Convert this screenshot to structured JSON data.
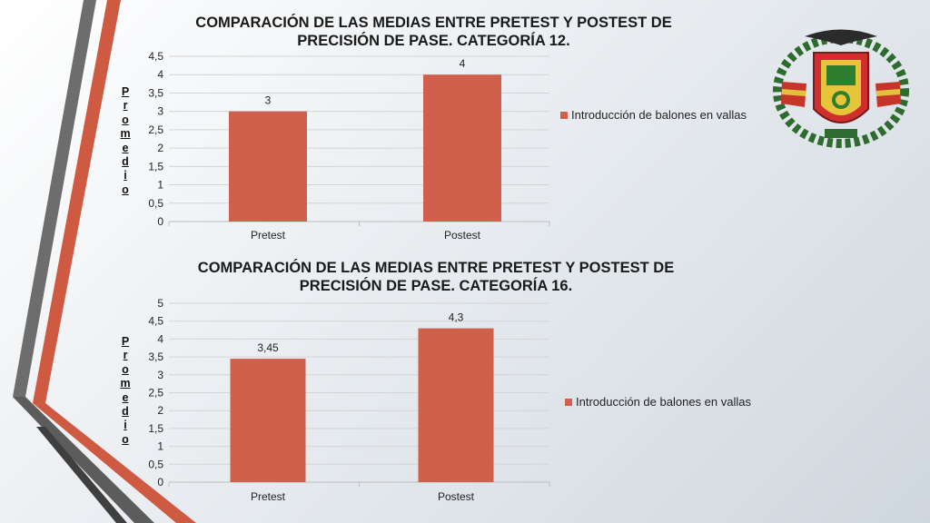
{
  "colors": {
    "bar": "#d0604c",
    "stripe_red": "#cf5a42",
    "stripe_gray": "#6a6a6a"
  },
  "logo": {
    "icon": "university-crest-icon"
  },
  "chart_data": [
    {
      "type": "bar",
      "title": "COMPARACIÓN DE LAS MEDIAS ENTRE PRETEST Y POSTEST DE PRECISIÓN DE PASE. CATEGORÍA 12.",
      "xlabel": "",
      "ylabel": "Promedio",
      "categories": [
        "Pretest",
        "Postest"
      ],
      "series": [
        {
          "name": "Introducción de balones en vallas",
          "values": [
            3,
            4
          ]
        }
      ],
      "data_labels": [
        "3",
        "4"
      ],
      "yticks": [
        "0",
        "0,5",
        "1",
        "1,5",
        "2",
        "2,5",
        "3",
        "3,5",
        "4",
        "4,5"
      ],
      "ylim": [
        0,
        4.5
      ],
      "grid": true,
      "legend_position": "right"
    },
    {
      "type": "bar",
      "title": "COMPARACIÓN DE LAS MEDIAS ENTRE PRETEST Y POSTEST DE PRECISIÓN DE PASE. CATEGORÍA 16.",
      "xlabel": "",
      "ylabel": "Promedio",
      "categories": [
        "Pretest",
        "Postest"
      ],
      "series": [
        {
          "name": "Introducción de balones en vallas",
          "values": [
            3.45,
            4.3
          ]
        }
      ],
      "data_labels": [
        "3,45",
        "4,3"
      ],
      "yticks": [
        "0",
        "0,5",
        "1",
        "1,5",
        "2",
        "2,5",
        "3",
        "3,5",
        "4",
        "4,5",
        "5"
      ],
      "ylim": [
        0,
        5
      ],
      "grid": true,
      "legend_position": "right"
    }
  ]
}
